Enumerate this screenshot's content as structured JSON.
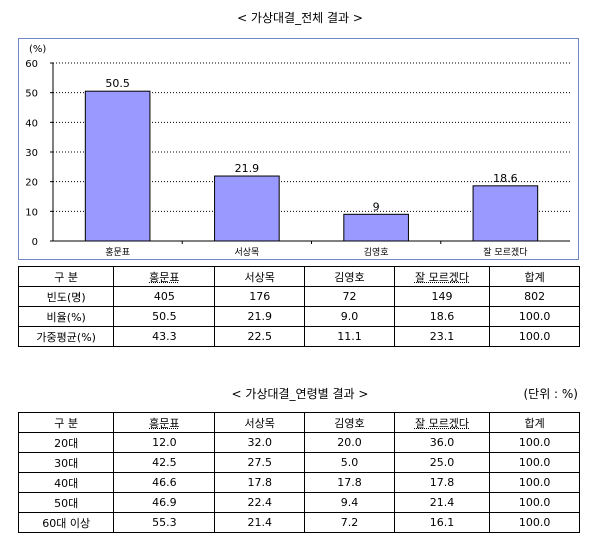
{
  "chart_data": {
    "type": "bar",
    "title": "< 가상대결_전체 결과 >",
    "ylabel": "(%)",
    "ylim": [
      0,
      60
    ],
    "yticks": [
      0,
      10,
      20,
      30,
      40,
      50,
      60
    ],
    "grid": true,
    "categories": [
      "홍문표",
      "서상목",
      "김영호",
      "잘 모르겠다"
    ],
    "values": [
      50.5,
      21.9,
      9,
      18.6
    ],
    "value_labels": [
      "50.5",
      "21.9",
      "9",
      "18.6"
    ],
    "bar_color": "#9999ff"
  },
  "table1": {
    "header": [
      "구  분",
      "홍문표",
      "서상목",
      "김영호",
      "잘 모르겠다",
      "합계"
    ],
    "rows": [
      [
        "빈도(명)",
        "405",
        "176",
        "72",
        "149",
        "802"
      ],
      [
        "비율(%)",
        "50.5",
        "21.9",
        "9.0",
        "18.6",
        "100.0"
      ],
      [
        "가중평균(%)",
        "43.3",
        "22.5",
        "11.1",
        "23.1",
        "100.0"
      ]
    ]
  },
  "section2": {
    "title": "< 가상대결_연령별 결과 >",
    "unit": "(단위 : %)"
  },
  "table2": {
    "header": [
      "구  분",
      "홍문표",
      "서상목",
      "김영호",
      "잘 모르겠다",
      "합계"
    ],
    "rows": [
      [
        "20대",
        "12.0",
        "32.0",
        "20.0",
        "36.0",
        "100.0"
      ],
      [
        "30대",
        "42.5",
        "27.5",
        "5.0",
        "25.0",
        "100.0"
      ],
      [
        "40대",
        "46.6",
        "17.8",
        "17.8",
        "17.8",
        "100.0"
      ],
      [
        "50대",
        "46.9",
        "22.4",
        "9.4",
        "21.4",
        "100.0"
      ],
      [
        "60대 이상",
        "55.3",
        "21.4",
        "7.2",
        "16.1",
        "100.0"
      ]
    ]
  }
}
